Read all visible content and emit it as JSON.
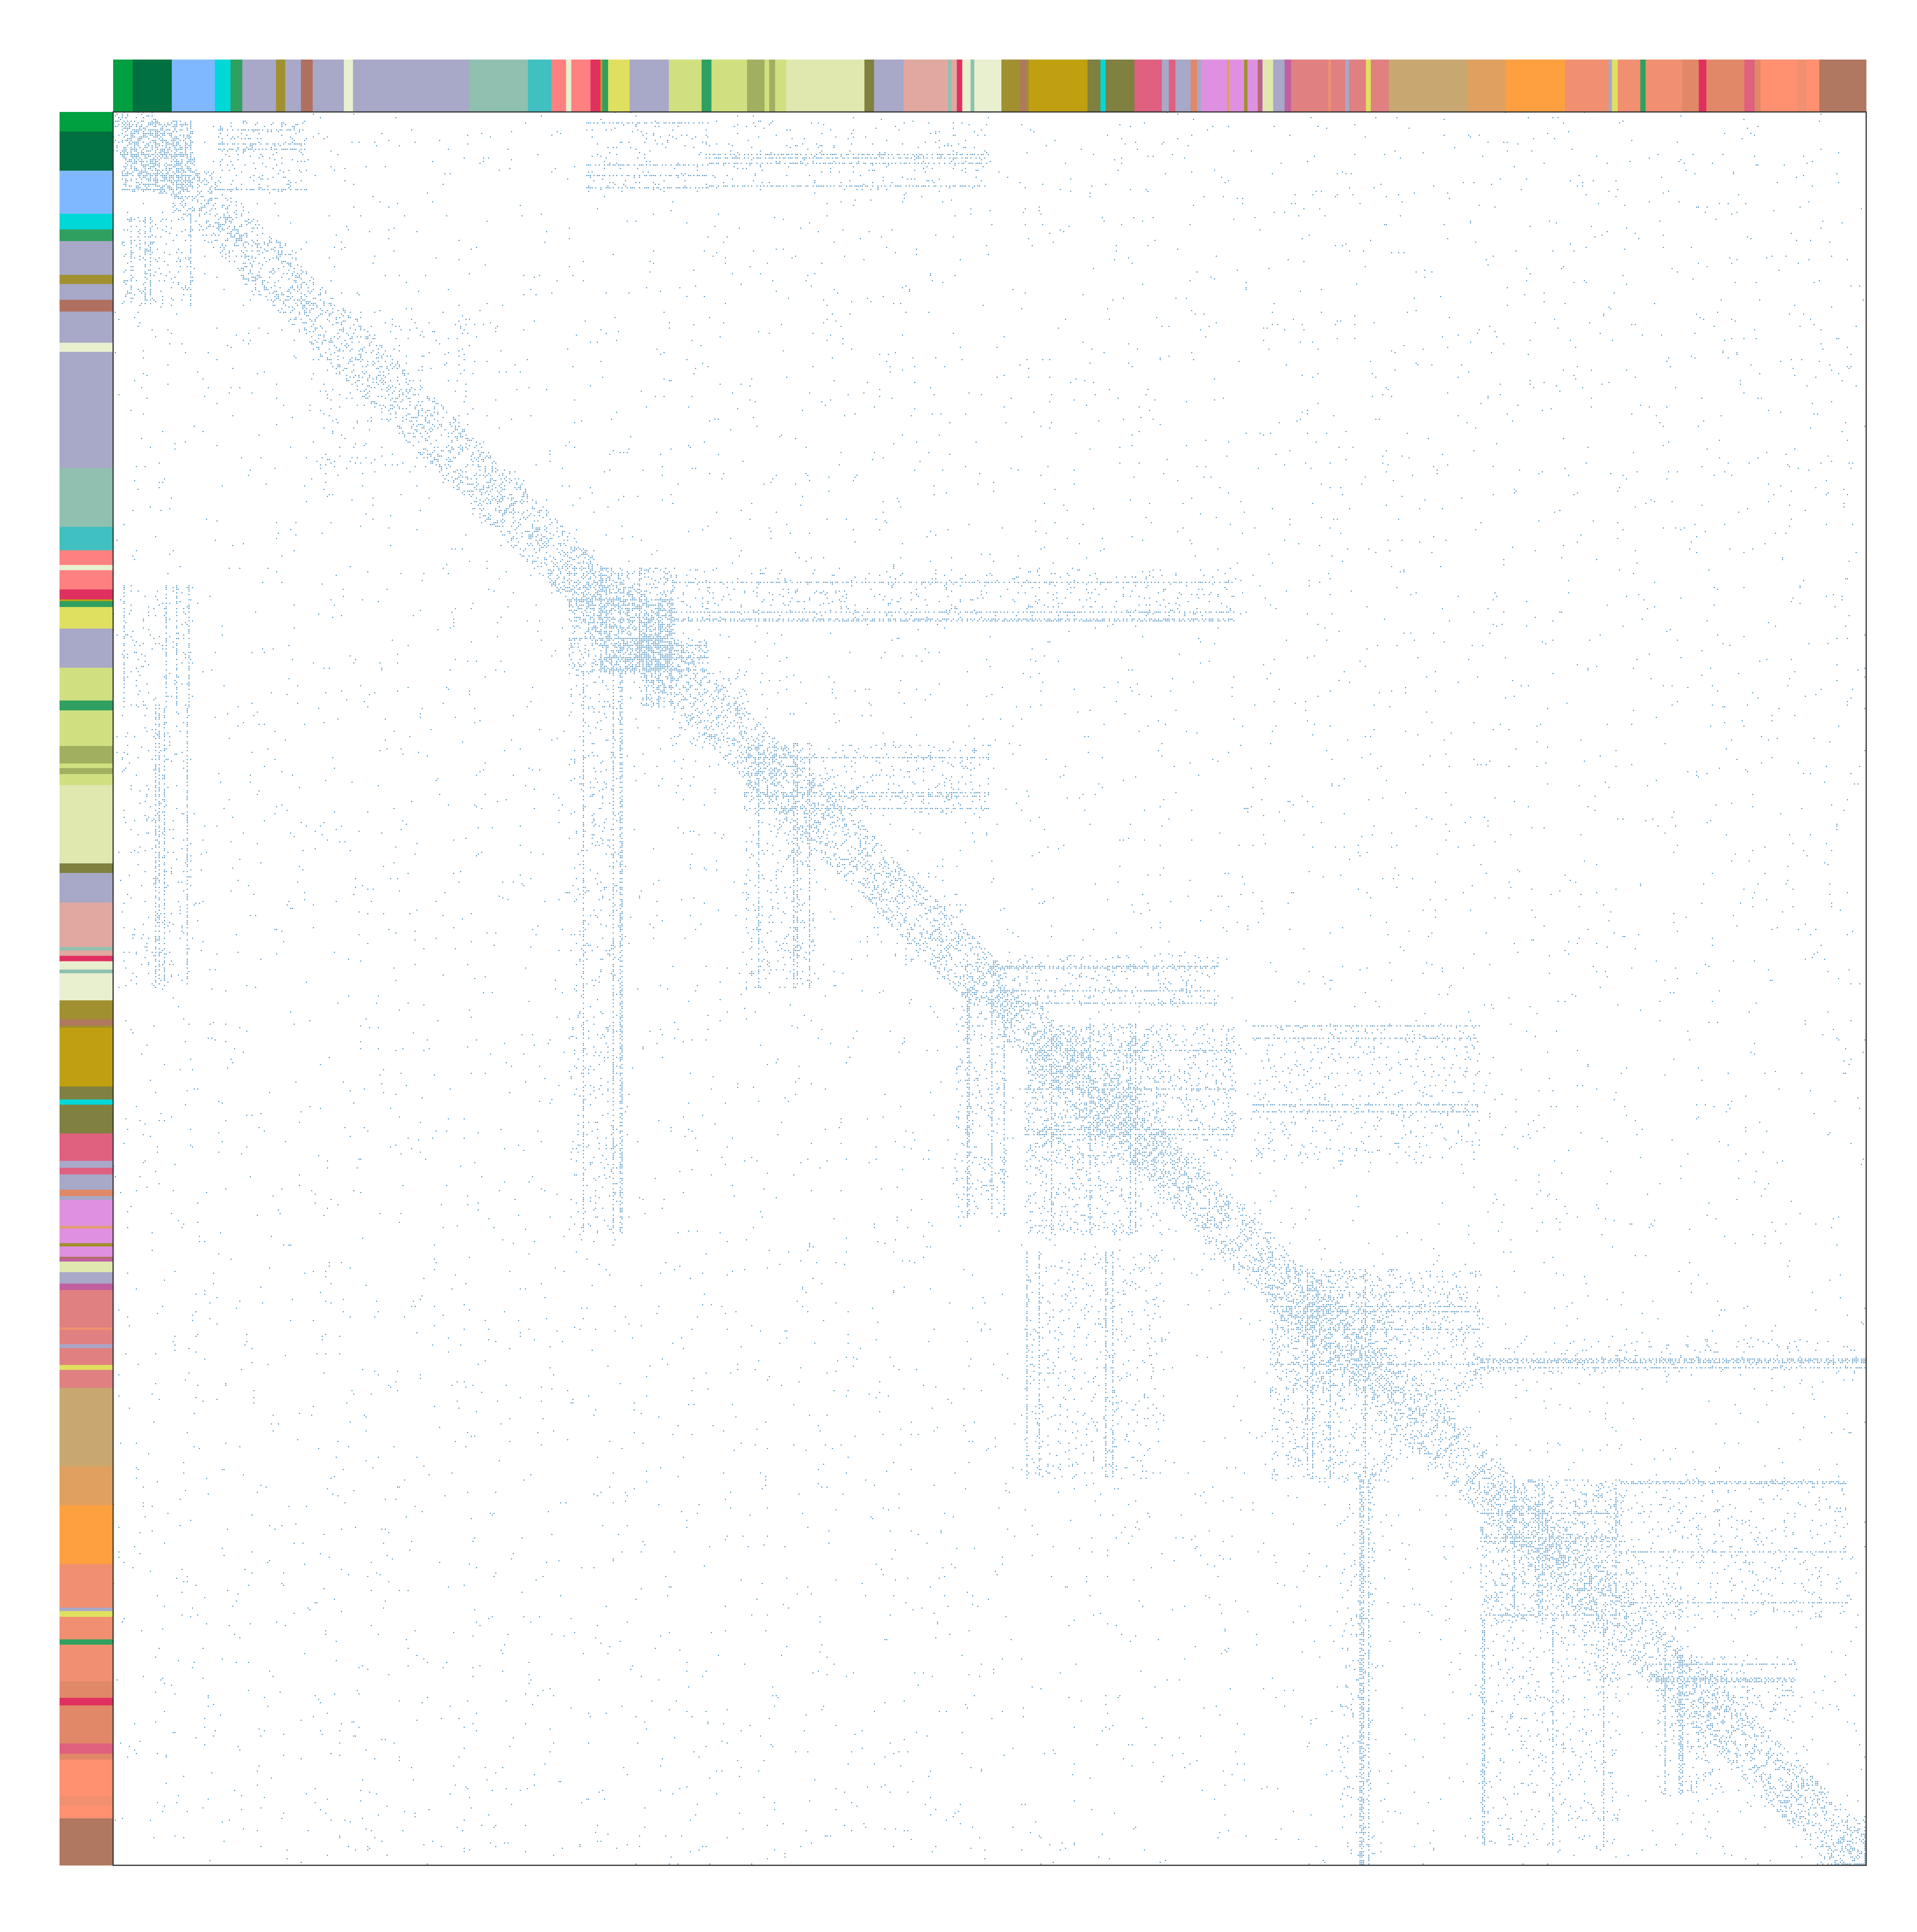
{
  "chart_data": {
    "type": "heatmap",
    "description_kind": "sparse adjacency matrix spy plot, nodes ordered by group, with group color strips on top and left",
    "title": "",
    "xlabel": "",
    "ylabel": "",
    "n_nodes": 1000,
    "mark_color": "#1f77b4",
    "grid": false,
    "legend": "none",
    "groups": [
      {
        "color": "#00a040",
        "size": 10
      },
      {
        "color": "#007040",
        "size": 20
      },
      {
        "color": "#80b8ff",
        "size": 22
      },
      {
        "color": "#00d8d8",
        "size": 8
      },
      {
        "color": "#30a060",
        "size": 6
      },
      {
        "color": "#a8a8c8",
        "size": 30
      },
      {
        "color": "#b07060",
        "size": 6
      },
      {
        "color": "#a8a8c8",
        "size": 80
      },
      {
        "color": "#90c0b0",
        "size": 30
      },
      {
        "color": "#40c0c0",
        "size": 12
      },
      {
        "color": "#ff8080",
        "size": 20
      },
      {
        "color": "#e03060",
        "size": 6
      },
      {
        "color": "#e0e060",
        "size": 14
      },
      {
        "color": "#a8a8c8",
        "size": 20
      },
      {
        "color": "#d0e080",
        "size": 40
      },
      {
        "color": "#a0b060",
        "size": 20
      },
      {
        "color": "#e0e8b0",
        "size": 40
      },
      {
        "color": "#a8a8c8",
        "size": 20
      },
      {
        "color": "#e0a8a0",
        "size": 30
      },
      {
        "color": "#e8f0d0",
        "size": 20
      },
      {
        "color": "#a09030",
        "size": 14
      },
      {
        "color": "#c0a010",
        "size": 30
      },
      {
        "color": "#808040",
        "size": 24
      },
      {
        "color": "#e06080",
        "size": 14
      },
      {
        "color": "#a8a8c8",
        "size": 20
      },
      {
        "color": "#e090e0",
        "size": 30
      },
      {
        "color": "#c060a0",
        "size": 16
      },
      {
        "color": "#e08080",
        "size": 50
      },
      {
        "color": "#c8a870",
        "size": 40
      },
      {
        "color": "#e0a060",
        "size": 20
      },
      {
        "color": "#ffa040",
        "size": 30
      },
      {
        "color": "#f09070",
        "size": 60
      },
      {
        "color": "#e08868",
        "size": 40
      },
      {
        "color": "#ff9070",
        "size": 30
      },
      {
        "color": "#b07860",
        "size": 24
      }
    ],
    "dense_blocks": [
      {
        "rows": [
          5,
          45
        ],
        "cols": [
          5,
          45
        ],
        "density": 0.6
      },
      {
        "rows": [
          5,
          45
        ],
        "cols": [
          60,
          110
        ],
        "density": 0.25
      },
      {
        "rows": [
          5,
          45
        ],
        "cols": [
          270,
          340
        ],
        "density": 0.12
      },
      {
        "rows": [
          5,
          45
        ],
        "cols": [
          340,
          500
        ],
        "density": 0.08
      },
      {
        "rows": [
          260,
          320
        ],
        "cols": [
          260,
          320
        ],
        "density": 0.35
      },
      {
        "rows": [
          300,
          320
        ],
        "cols": [
          280,
          340
        ],
        "density": 0.6
      },
      {
        "rows": [
          260,
          290
        ],
        "cols": [
          320,
          640
        ],
        "density": 0.12
      },
      {
        "rows": [
          360,
          400
        ],
        "cols": [
          360,
          500
        ],
        "density": 0.15
      },
      {
        "rows": [
          480,
          510
        ],
        "cols": [
          500,
          630
        ],
        "density": 0.18
      },
      {
        "rows": [
          520,
          600
        ],
        "cols": [
          520,
          640
        ],
        "density": 0.25
      },
      {
        "rows": [
          520,
          600
        ],
        "cols": [
          650,
          780
        ],
        "density": 0.12
      },
      {
        "rows": [
          660,
          730
        ],
        "cols": [
          660,
          780
        ],
        "density": 0.25
      },
      {
        "rows": [
          700,
          720
        ],
        "cols": [
          780,
          1000
        ],
        "density": 0.12
      },
      {
        "rows": [
          780,
          860
        ],
        "cols": [
          780,
          860
        ],
        "density": 0.2
      },
      {
        "rows": [
          780,
          860
        ],
        "cols": [
          860,
          990
        ],
        "density": 0.1
      },
      {
        "rows": [
          880,
          920
        ],
        "cols": [
          880,
          960
        ],
        "density": 0.15
      }
    ]
  }
}
